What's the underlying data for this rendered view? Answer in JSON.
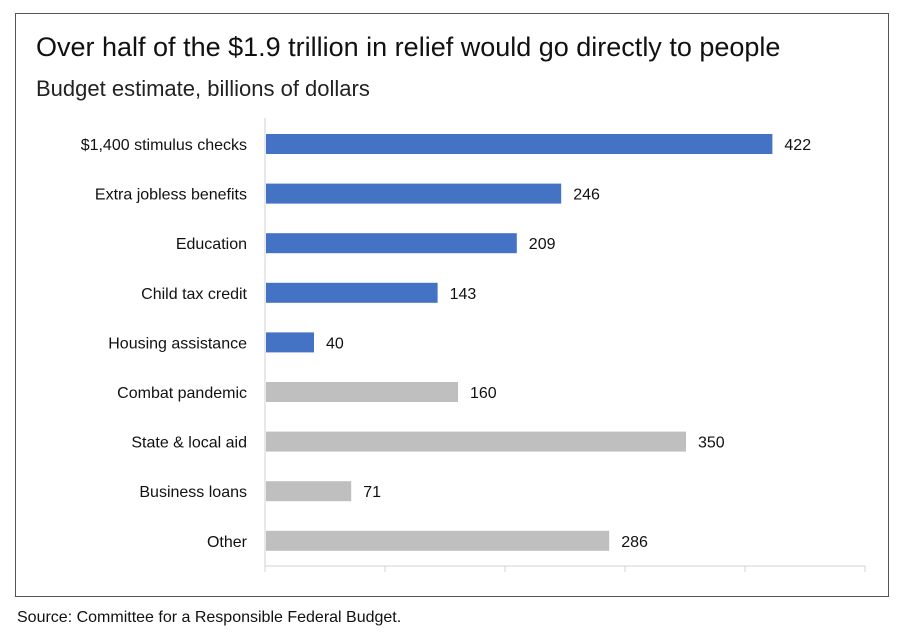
{
  "source": "Source: Committee for a Responsible Federal Budget.",
  "chart_data": {
    "type": "bar",
    "orientation": "horizontal",
    "title": "Over half of the $1.9 trillion in relief would go directly to people",
    "subtitle": "Budget estimate, billions of dollars",
    "xlabel": "",
    "ylabel": "",
    "xlim": [
      0,
      500
    ],
    "grid": false,
    "data_labels": true,
    "categories": [
      "$1,400 stimulus checks",
      "Extra jobless benefits",
      "Education",
      "Child tax credit",
      "Housing assistance",
      "Combat pandemic",
      "State & local aid",
      "Business loans",
      "Other"
    ],
    "values": [
      422,
      246,
      209,
      143,
      40,
      160,
      350,
      71,
      286
    ],
    "bar_colors": [
      "#4472c4",
      "#4472c4",
      "#4472c4",
      "#4472c4",
      "#4472c4",
      "#bfbfbf",
      "#bfbfbf",
      "#bfbfbf",
      "#bfbfbf"
    ]
  }
}
